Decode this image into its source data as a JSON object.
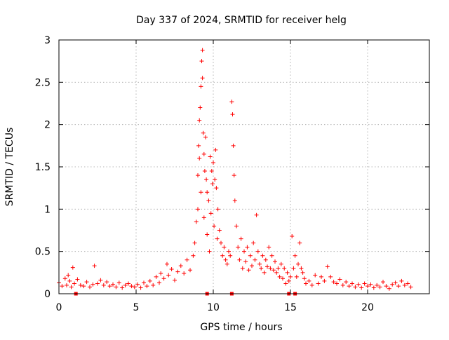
{
  "chart_data": {
    "type": "scatter",
    "title": "Day 337 of 2024, SRMTID for receiver helg",
    "xlabel": "GPS time / hours",
    "ylabel": "SRMTID / TECUs",
    "xlim": [
      0,
      24.0
    ],
    "ylim": [
      0,
      3
    ],
    "x_ticks": [
      0,
      5,
      10,
      15,
      20
    ],
    "x_tick_labels": [
      "0",
      "5",
      "10",
      "15",
      "20"
    ],
    "y_ticks": [
      0,
      0.5,
      1,
      1.5,
      2,
      2.5,
      3
    ],
    "y_tick_labels": [
      "0",
      "0.5",
      "1",
      "1.5",
      "2",
      "2.5",
      "3"
    ],
    "grid": true,
    "marker": "plus",
    "color": "#ff0000",
    "edge_markers": {
      "marker": "square",
      "y": 0,
      "x": [
        1.1,
        9.6,
        11.2,
        14.9,
        15.3
      ]
    },
    "series": [
      {
        "name": "SRMTID",
        "points": [
          [
            0.0,
            0.13
          ],
          [
            0.2,
            0.09
          ],
          [
            0.4,
            0.18
          ],
          [
            0.5,
            0.1
          ],
          [
            0.6,
            0.22
          ],
          [
            0.7,
            0.15
          ],
          [
            0.8,
            0.08
          ],
          [
            0.9,
            0.31
          ],
          [
            1.0,
            0.12
          ],
          [
            1.2,
            0.17
          ],
          [
            1.4,
            0.1
          ],
          [
            1.6,
            0.09
          ],
          [
            1.8,
            0.14
          ],
          [
            2.0,
            0.08
          ],
          [
            2.2,
            0.11
          ],
          [
            2.3,
            0.33
          ],
          [
            2.5,
            0.12
          ],
          [
            2.7,
            0.16
          ],
          [
            2.9,
            0.1
          ],
          [
            3.1,
            0.14
          ],
          [
            3.3,
            0.09
          ],
          [
            3.5,
            0.11
          ],
          [
            3.7,
            0.08
          ],
          [
            3.9,
            0.13
          ],
          [
            4.1,
            0.07
          ],
          [
            4.3,
            0.1
          ],
          [
            4.5,
            0.12
          ],
          [
            4.7,
            0.09
          ],
          [
            4.9,
            0.08
          ],
          [
            5.1,
            0.11
          ],
          [
            5.3,
            0.07
          ],
          [
            5.5,
            0.13
          ],
          [
            5.7,
            0.09
          ],
          [
            5.9,
            0.15
          ],
          [
            6.1,
            0.1
          ],
          [
            6.3,
            0.2
          ],
          [
            6.5,
            0.13
          ],
          [
            6.6,
            0.24
          ],
          [
            6.8,
            0.18
          ],
          [
            7.0,
            0.35
          ],
          [
            7.1,
            0.22
          ],
          [
            7.3,
            0.29
          ],
          [
            7.5,
            0.16
          ],
          [
            7.7,
            0.26
          ],
          [
            7.9,
            0.33
          ],
          [
            8.1,
            0.24
          ],
          [
            8.3,
            0.4
          ],
          [
            8.5,
            0.28
          ],
          [
            8.7,
            0.45
          ],
          [
            8.8,
            0.6
          ],
          [
            8.9,
            0.85
          ],
          [
            9.0,
            1.0
          ],
          [
            9.0,
            1.4
          ],
          [
            9.05,
            1.75
          ],
          [
            9.1,
            2.05
          ],
          [
            9.1,
            1.6
          ],
          [
            9.15,
            2.2
          ],
          [
            9.2,
            2.45
          ],
          [
            9.2,
            1.2
          ],
          [
            9.25,
            2.75
          ],
          [
            9.3,
            2.88
          ],
          [
            9.3,
            2.55
          ],
          [
            9.35,
            1.9
          ],
          [
            9.4,
            1.65
          ],
          [
            9.4,
            0.9
          ],
          [
            9.45,
            1.45
          ],
          [
            9.5,
            1.85
          ],
          [
            9.55,
            1.35
          ],
          [
            9.6,
            1.2
          ],
          [
            9.6,
            0.7
          ],
          [
            9.7,
            1.1
          ],
          [
            9.75,
            0.5
          ],
          [
            9.8,
            1.62
          ],
          [
            9.85,
            0.95
          ],
          [
            9.9,
            1.45
          ],
          [
            9.95,
            1.3
          ],
          [
            10.0,
            1.55
          ],
          [
            10.05,
            0.8
          ],
          [
            10.1,
            1.35
          ],
          [
            10.15,
            1.7
          ],
          [
            10.2,
            1.25
          ],
          [
            10.25,
            0.65
          ],
          [
            10.3,
            1.0
          ],
          [
            10.4,
            0.75
          ],
          [
            10.5,
            0.6
          ],
          [
            10.6,
            0.45
          ],
          [
            10.7,
            0.55
          ],
          [
            10.8,
            0.4
          ],
          [
            10.9,
            0.35
          ],
          [
            11.0,
            0.5
          ],
          [
            11.1,
            0.45
          ],
          [
            11.2,
            2.27
          ],
          [
            11.25,
            2.12
          ],
          [
            11.3,
            1.75
          ],
          [
            11.35,
            1.4
          ],
          [
            11.4,
            1.1
          ],
          [
            11.5,
            0.8
          ],
          [
            11.6,
            0.55
          ],
          [
            11.7,
            0.4
          ],
          [
            11.8,
            0.65
          ],
          [
            11.9,
            0.3
          ],
          [
            12.0,
            0.5
          ],
          [
            12.1,
            0.38
          ],
          [
            12.2,
            0.55
          ],
          [
            12.3,
            0.28
          ],
          [
            12.4,
            0.45
          ],
          [
            12.5,
            0.33
          ],
          [
            12.6,
            0.6
          ],
          [
            12.7,
            0.4
          ],
          [
            12.8,
            0.93
          ],
          [
            12.9,
            0.5
          ],
          [
            13.0,
            0.35
          ],
          [
            13.1,
            0.3
          ],
          [
            13.2,
            0.45
          ],
          [
            13.3,
            0.25
          ],
          [
            13.4,
            0.4
          ],
          [
            13.5,
            0.32
          ],
          [
            13.6,
            0.55
          ],
          [
            13.7,
            0.3
          ],
          [
            13.8,
            0.45
          ],
          [
            13.9,
            0.28
          ],
          [
            14.0,
            0.38
          ],
          [
            14.1,
            0.25
          ],
          [
            14.2,
            0.3
          ],
          [
            14.3,
            0.2
          ],
          [
            14.4,
            0.35
          ],
          [
            14.5,
            0.18
          ],
          [
            14.6,
            0.3
          ],
          [
            14.7,
            0.12
          ],
          [
            14.8,
            0.25
          ],
          [
            14.9,
            0.15
          ],
          [
            15.0,
            0.2
          ],
          [
            15.1,
            0.68
          ],
          [
            15.2,
            0.3
          ],
          [
            15.3,
            0.45
          ],
          [
            15.4,
            0.2
          ],
          [
            15.5,
            0.35
          ],
          [
            15.6,
            0.6
          ],
          [
            15.7,
            0.3
          ],
          [
            15.8,
            0.25
          ],
          [
            15.9,
            0.18
          ],
          [
            16.0,
            0.12
          ],
          [
            16.2,
            0.15
          ],
          [
            16.4,
            0.1
          ],
          [
            16.6,
            0.22
          ],
          [
            16.8,
            0.12
          ],
          [
            17.0,
            0.2
          ],
          [
            17.2,
            0.15
          ],
          [
            17.4,
            0.32
          ],
          [
            17.6,
            0.2
          ],
          [
            17.8,
            0.14
          ],
          [
            18.0,
            0.12
          ],
          [
            18.2,
            0.17
          ],
          [
            18.4,
            0.1
          ],
          [
            18.6,
            0.14
          ],
          [
            18.8,
            0.09
          ],
          [
            19.0,
            0.12
          ],
          [
            19.2,
            0.08
          ],
          [
            19.4,
            0.11
          ],
          [
            19.6,
            0.07
          ],
          [
            19.8,
            0.12
          ],
          [
            20.0,
            0.09
          ],
          [
            20.2,
            0.11
          ],
          [
            20.4,
            0.07
          ],
          [
            20.6,
            0.1
          ],
          [
            20.8,
            0.08
          ],
          [
            21.0,
            0.14
          ],
          [
            21.2,
            0.09
          ],
          [
            21.4,
            0.06
          ],
          [
            21.6,
            0.11
          ],
          [
            21.8,
            0.13
          ],
          [
            22.0,
            0.09
          ],
          [
            22.2,
            0.15
          ],
          [
            22.4,
            0.1
          ],
          [
            22.6,
            0.12
          ],
          [
            22.8,
            0.08
          ]
        ]
      }
    ]
  }
}
